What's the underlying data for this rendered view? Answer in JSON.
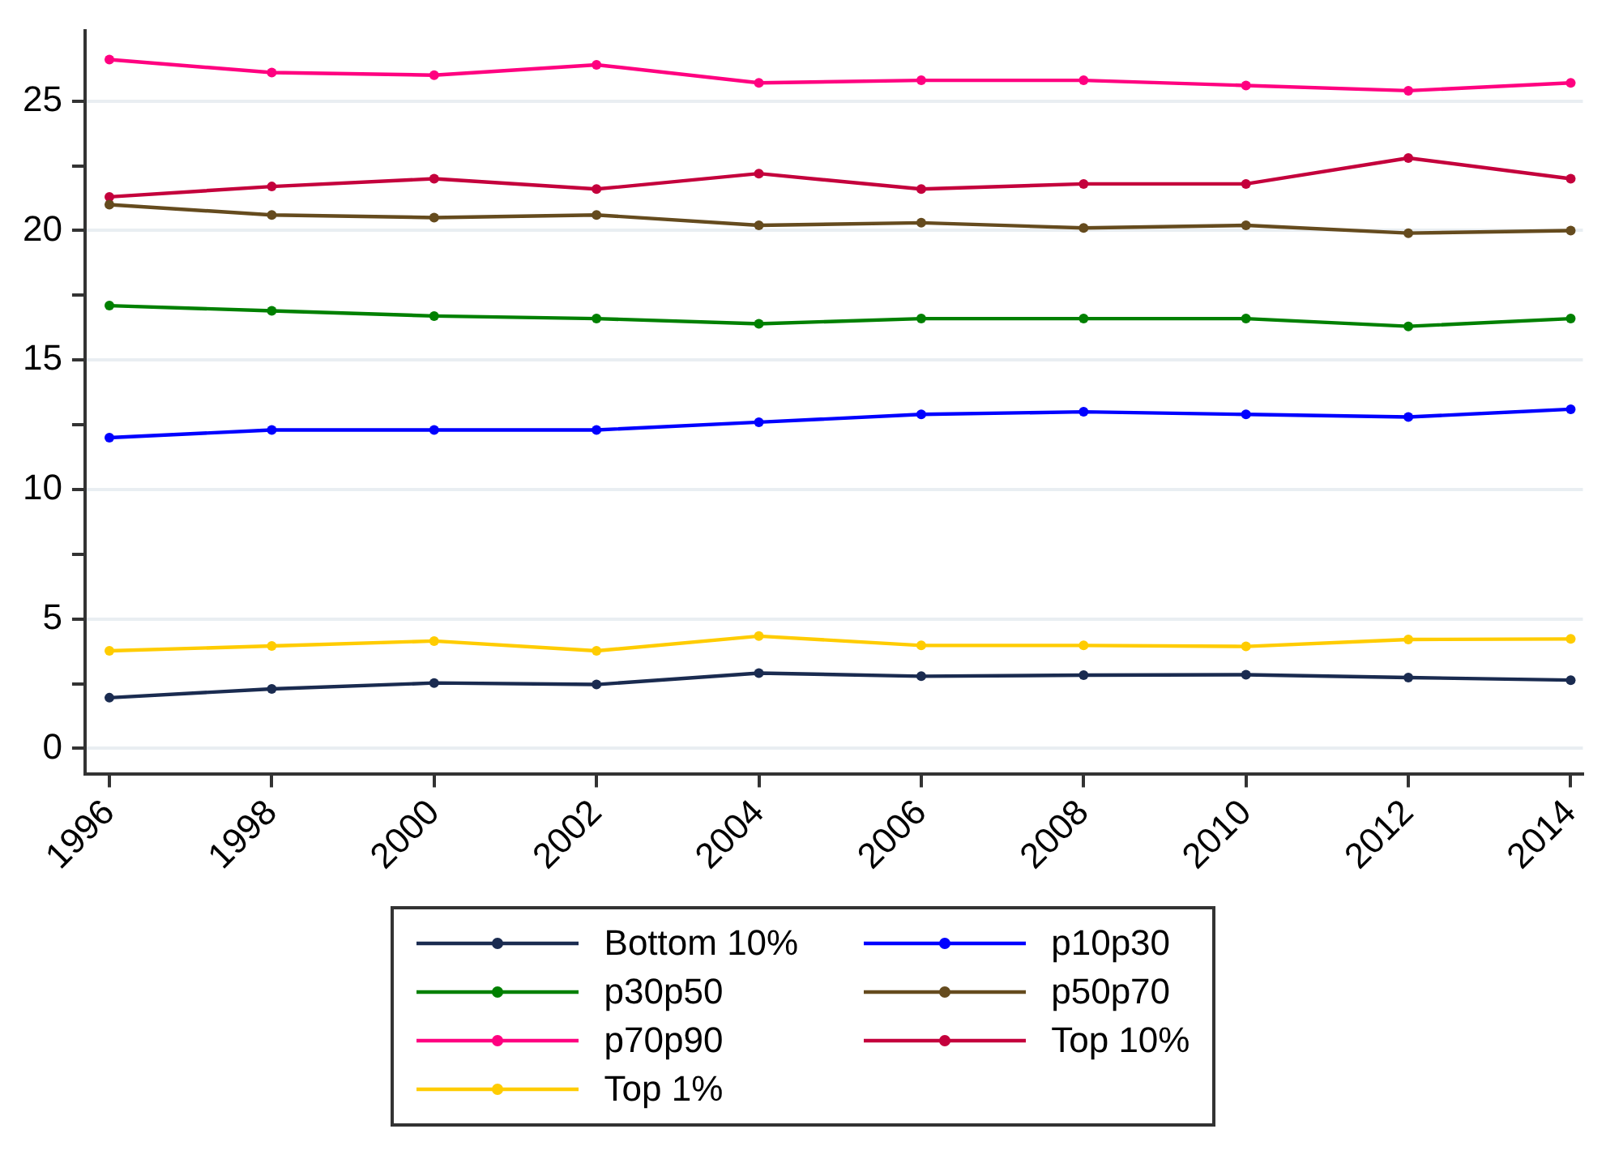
{
  "chart_data": {
    "type": "line",
    "x": [
      1996,
      1998,
      2000,
      2002,
      2004,
      2006,
      2008,
      2010,
      2012,
      2014
    ],
    "xlim": [
      1995.7,
      2014.15
    ],
    "xticks": [
      1996,
      1998,
      2000,
      2002,
      2004,
      2006,
      2008,
      2010,
      2012,
      2014
    ],
    "ylim": [
      -1,
      27.7
    ],
    "yticks": [
      0,
      {
        "value": 2.5,
        "label": null
      },
      5,
      {
        "value": 7.5,
        "label": null
      },
      10,
      {
        "value": 12.5,
        "label": null
      },
      15,
      {
        "value": 17.5,
        "label": null
      },
      20,
      {
        "value": 22.5,
        "label": null
      },
      25
    ],
    "grid": "y",
    "legend": "bottom",
    "marker": "circle",
    "line_style": "solid",
    "series": [
      {
        "name": "Bottom 10%",
        "color": "#1a2b50",
        "values": [
          1.96,
          2.3,
          2.53,
          2.47,
          2.91,
          2.79,
          2.83,
          2.85,
          2.74,
          2.64
        ]
      },
      {
        "name": "p10p30",
        "color": "#0000ff",
        "values": [
          12.0,
          12.3,
          12.3,
          12.3,
          12.6,
          12.9,
          13.0,
          12.9,
          12.8,
          13.1
        ]
      },
      {
        "name": "p30p50",
        "color": "#008000",
        "values": [
          17.1,
          16.9,
          16.7,
          16.6,
          16.4,
          16.6,
          16.6,
          16.6,
          16.3,
          16.6
        ]
      },
      {
        "name": "p50p70",
        "color": "#654b1e",
        "values": [
          21.0,
          20.6,
          20.5,
          20.6,
          20.2,
          20.3,
          20.1,
          20.2,
          19.9,
          20.0
        ]
      },
      {
        "name": "p70p90",
        "color": "#ff0080",
        "values": [
          26.6,
          26.1,
          26.0,
          26.4,
          25.7,
          25.8,
          25.8,
          25.6,
          25.4,
          25.7
        ]
      },
      {
        "name": "Top 10%",
        "color": "#c4003c",
        "values": [
          21.3,
          21.7,
          22.0,
          21.6,
          22.2,
          21.6,
          21.8,
          21.8,
          22.8,
          22.0
        ]
      },
      {
        "name": "Top 1%",
        "color": "#ffcc00",
        "values": [
          3.77,
          3.96,
          4.15,
          3.77,
          4.34,
          3.98,
          3.98,
          3.94,
          4.21,
          4.23
        ]
      }
    ]
  }
}
